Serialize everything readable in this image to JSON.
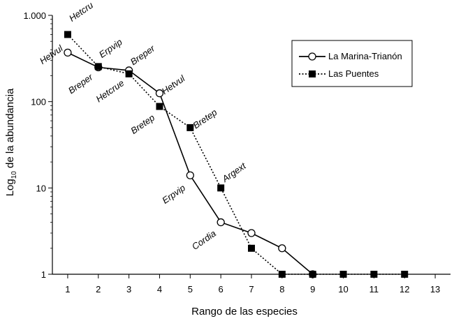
{
  "chart_data": {
    "type": "line",
    "title": "",
    "xlabel": "Rango de las especies",
    "ylabel_main": "Log",
    "ylabel_sub": "10",
    "ylabel_rest": " de la abundancia",
    "y_scale": "log",
    "xlim": [
      0.5,
      13.5
    ],
    "ylim": [
      1,
      1000
    ],
    "x_ticks": [
      "1",
      "2",
      "3",
      "4",
      "5",
      "6",
      "7",
      "8",
      "9",
      "10",
      "11",
      "12",
      "13"
    ],
    "y_ticks": [
      {
        "value": 1,
        "label": "1"
      },
      {
        "value": 10,
        "label": "10"
      },
      {
        "value": 100,
        "label": "100"
      },
      {
        "value": 1000,
        "label": "1.000"
      }
    ],
    "grid": false,
    "legend_position": "top-right",
    "series": [
      {
        "name": "La Marina-Trianón",
        "line_style": "solid",
        "marker": "open-circle",
        "x": [
          1,
          2,
          3,
          4,
          5,
          6,
          7,
          8,
          9
        ],
        "y": [
          370,
          250,
          230,
          125,
          14,
          4,
          3,
          2,
          1
        ]
      },
      {
        "name": "Las Puentes",
        "line_style": "dotted",
        "marker": "filled-square",
        "x": [
          1,
          2,
          3,
          4,
          5,
          6,
          7,
          8,
          9,
          10,
          11,
          12
        ],
        "y": [
          600,
          255,
          210,
          88,
          50,
          10,
          2,
          1,
          1,
          1,
          1,
          1
        ]
      }
    ],
    "annotations": [
      {
        "text": "Hetcru",
        "x": 1,
        "y": 600
      },
      {
        "text": "Hetvul",
        "x": 1,
        "y": 370
      },
      {
        "text": "Erpvip",
        "x": 2,
        "y": 255
      },
      {
        "text": "Breper",
        "x": 2,
        "y": 250
      },
      {
        "text": "Breper",
        "x": 3,
        "y": 210
      },
      {
        "text": "Hetcrue",
        "x": 3,
        "y": 230
      },
      {
        "text": "Hetvul",
        "x": 4,
        "y": 125
      },
      {
        "text": "Bretep",
        "x": 4,
        "y": 88
      },
      {
        "text": "Bretep",
        "x": 5,
        "y": 50
      },
      {
        "text": "Erpvip",
        "x": 5,
        "y": 14
      },
      {
        "text": "Argext",
        "x": 6,
        "y": 10
      },
      {
        "text": "Cordia",
        "x": 6,
        "y": 4
      }
    ]
  }
}
